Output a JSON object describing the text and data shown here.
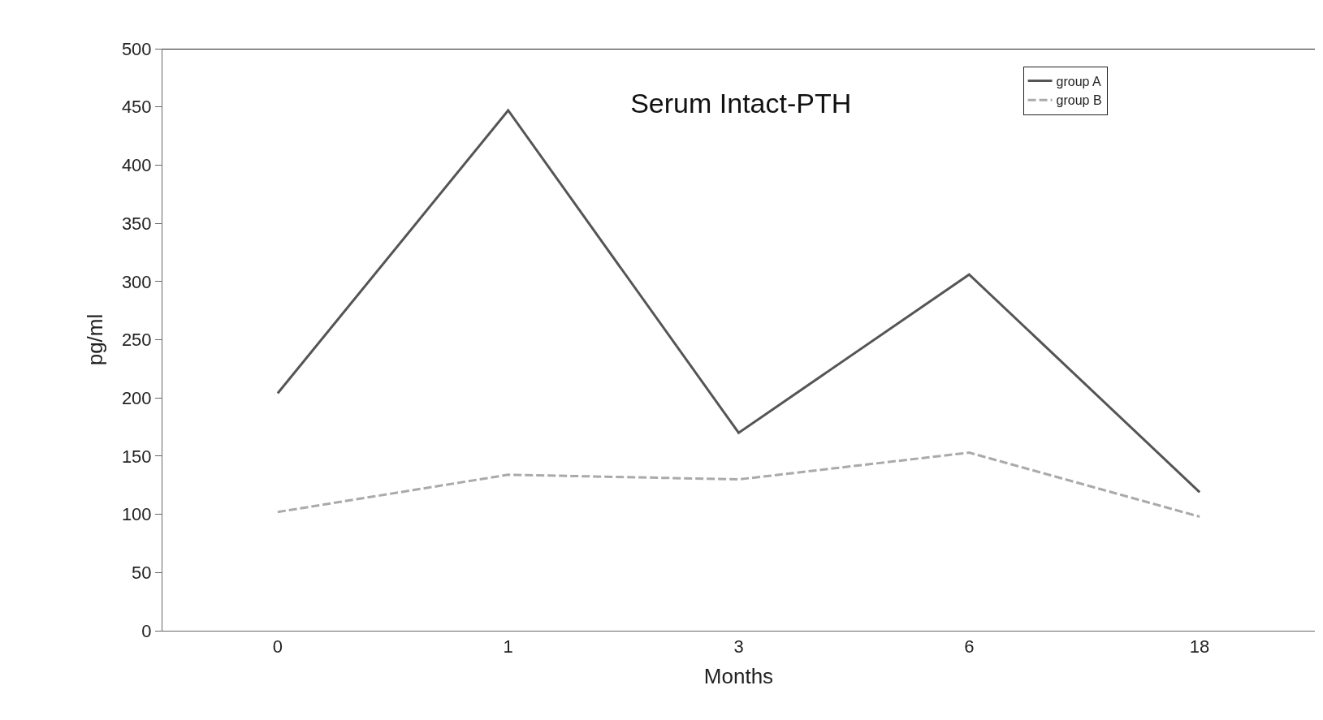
{
  "chart_data": {
    "type": "line",
    "title": "Serum Intact-PTH",
    "xlabel": "Months",
    "ylabel": "pg/ml",
    "categories": [
      "0",
      "1",
      "3",
      "6",
      "18"
    ],
    "series": [
      {
        "name": "group A",
        "color": "#555555",
        "line_style": "solid",
        "values": [
          204,
          447,
          170,
          306,
          119
        ]
      },
      {
        "name": "group B",
        "color": "#aaaaaa",
        "line_style": "dashed",
        "values": [
          102,
          134,
          130,
          153,
          98
        ]
      }
    ],
    "ylim": [
      0,
      500
    ],
    "yticks": [
      0,
      50,
      100,
      150,
      200,
      250,
      300,
      350,
      400,
      450,
      500
    ],
    "legend": "top right",
    "marker": "none"
  }
}
